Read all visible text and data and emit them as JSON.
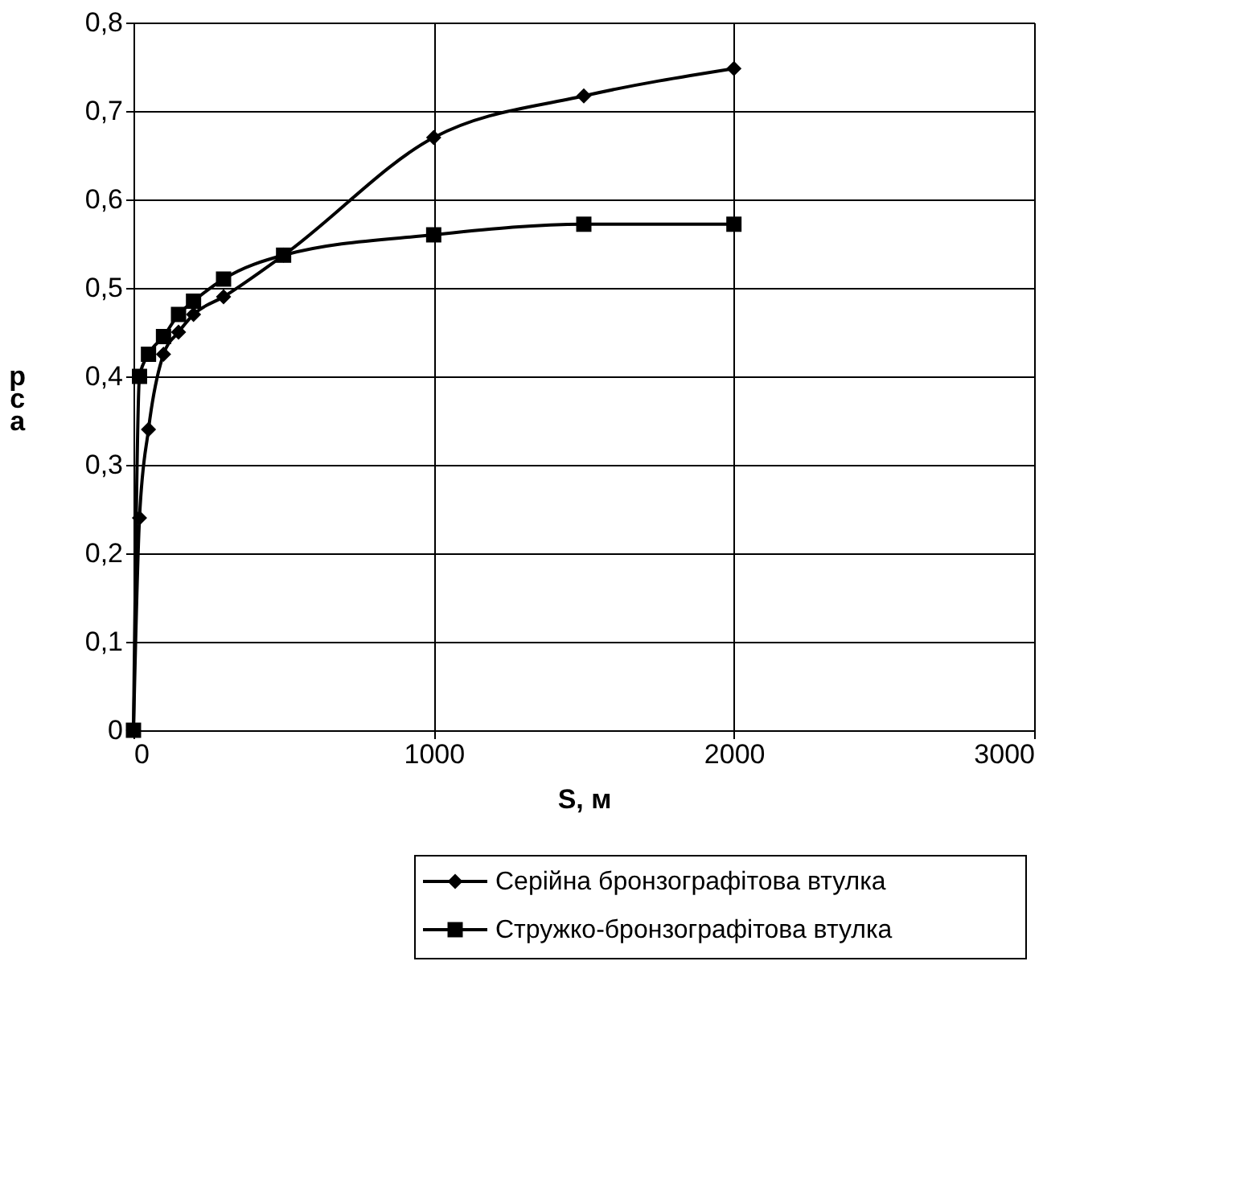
{
  "chart_data": {
    "type": "line",
    "xlabel": "S, м",
    "ylabel": "рса",
    "x": [
      0,
      20,
      50,
      100,
      150,
      200,
      300,
      500,
      1000,
      1500,
      2000
    ],
    "series": [
      {
        "name": "Серійна  бронзографітова втулка",
        "color": "#000000",
        "marker": "diamond",
        "values": [
          0,
          0.24,
          0.34,
          0.425,
          0.45,
          0.47,
          0.49,
          0.537,
          0.67,
          0.717,
          0.748
        ]
      },
      {
        "name": "Стружко-бронзографітова втулка",
        "color": "#000000",
        "marker": "square",
        "values": [
          0,
          0.4,
          0.425,
          0.445,
          0.47,
          0.485,
          0.51,
          0.537,
          0.56,
          0.572,
          0.572
        ]
      }
    ],
    "xlim": [
      0,
      3000
    ],
    "xticks": [
      0,
      1000,
      2000,
      3000
    ],
    "ylim": [
      0,
      0.8
    ],
    "yticks": [
      {
        "value": 0,
        "label": "0"
      },
      {
        "value": 0.1,
        "label": "0,1"
      },
      {
        "value": 0.2,
        "label": "0,2"
      },
      {
        "value": 0.3,
        "label": "0,3"
      },
      {
        "value": 0.4,
        "label": "0,4"
      },
      {
        "value": 0.5,
        "label": "0,5"
      },
      {
        "value": 0.6,
        "label": "0,6"
      },
      {
        "value": 0.7,
        "label": "0,7"
      },
      {
        "value": 0.8,
        "label": "0,8"
      }
    ],
    "grid": true,
    "legend": "bottom",
    "line_style": "solid"
  }
}
